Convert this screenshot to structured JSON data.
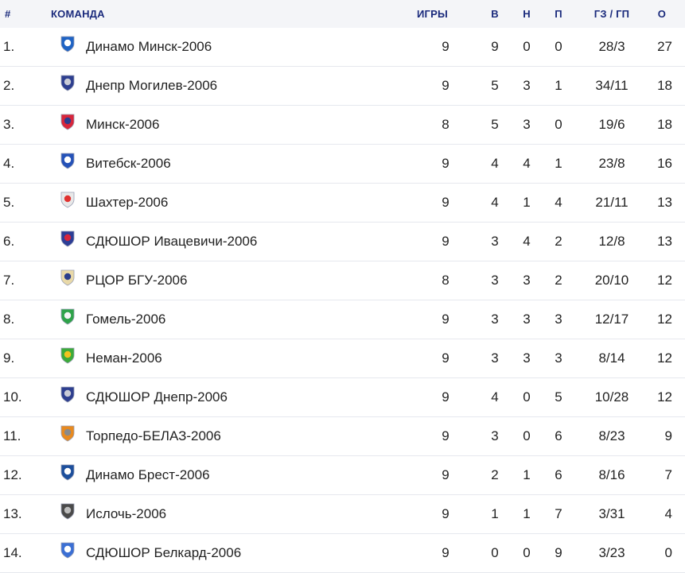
{
  "header": {
    "pos": "#",
    "team": "КОМАНДА",
    "games": "ИГРЫ",
    "wins": "В",
    "draws": "Н",
    "losses": "П",
    "goals": "ГЗ / ГП",
    "points": "О"
  },
  "rows": [
    {
      "pos": "1.",
      "team": "Динамо Минск-2006",
      "games": "9",
      "w": "9",
      "d": "0",
      "l": "0",
      "goals": "28/3",
      "pts": "27",
      "logo": "dinamo-minsk-logo",
      "color": "#1f63c4",
      "color2": "#ffffff"
    },
    {
      "pos": "2.",
      "team": "Днепр Могилев-2006",
      "games": "9",
      "w": "5",
      "d": "3",
      "l": "1",
      "goals": "34/11",
      "pts": "18",
      "logo": "dnepr-mogilev-logo",
      "color": "#2e3f8f",
      "color2": "#c9cbd6"
    },
    {
      "pos": "3.",
      "team": "Минск-2006",
      "games": "8",
      "w": "5",
      "d": "3",
      "l": "0",
      "goals": "19/6",
      "pts": "18",
      "logo": "minsk-logo",
      "color": "#d8263b",
      "color2": "#2b3d8f"
    },
    {
      "pos": "4.",
      "team": "Витебск-2006",
      "games": "9",
      "w": "4",
      "d": "4",
      "l": "1",
      "goals": "23/8",
      "pts": "16",
      "logo": "vitebsk-logo",
      "color": "#2552b8",
      "color2": "#ffffff"
    },
    {
      "pos": "5.",
      "team": "Шахтер-2006",
      "games": "9",
      "w": "4",
      "d": "1",
      "l": "4",
      "goals": "21/11",
      "pts": "13",
      "logo": "shakhter-logo",
      "color": "#e8e8e8",
      "color2": "#e0312f"
    },
    {
      "pos": "6.",
      "team": "СДЮШОР Ивацевичи-2006",
      "games": "9",
      "w": "3",
      "d": "4",
      "l": "2",
      "goals": "12/8",
      "pts": "13",
      "logo": "ivatsevichi-logo",
      "color": "#2d3e96",
      "color2": "#d8263b"
    },
    {
      "pos": "7.",
      "team": "РЦОР БГУ-2006",
      "games": "8",
      "w": "3",
      "d": "3",
      "l": "2",
      "goals": "20/10",
      "pts": "12",
      "logo": "rtsor-bgu-logo",
      "color": "#e9d9a8",
      "color2": "#2a3d8c"
    },
    {
      "pos": "8.",
      "team": "Гомель-2006",
      "games": "9",
      "w": "3",
      "d": "3",
      "l": "3",
      "goals": "12/17",
      "pts": "12",
      "logo": "gomel-logo",
      "color": "#2fa34a",
      "color2": "#f5f5f5"
    },
    {
      "pos": "9.",
      "team": "Неман-2006",
      "games": "9",
      "w": "3",
      "d": "3",
      "l": "3",
      "goals": "8/14",
      "pts": "12",
      "logo": "neman-logo",
      "color": "#3cab3a",
      "color2": "#f2c21f"
    },
    {
      "pos": "10.",
      "team": "СДЮШОР Днепр-2006",
      "games": "9",
      "w": "4",
      "d": "0",
      "l": "5",
      "goals": "10/28",
      "pts": "12",
      "logo": "dnepr-sdyushor-logo",
      "color": "#2e3f8f",
      "color2": "#c9cbd6"
    },
    {
      "pos": "11.",
      "team": "Торпедо-БЕЛАЗ-2006",
      "games": "9",
      "w": "3",
      "d": "0",
      "l": "6",
      "goals": "8/23",
      "pts": "9",
      "logo": "torpedo-belaz-logo",
      "color": "#e88a1f",
      "color2": "#8a8a8a"
    },
    {
      "pos": "12.",
      "team": "Динамо Брест-2006",
      "games": "9",
      "w": "2",
      "d": "1",
      "l": "6",
      "goals": "8/16",
      "pts": "7",
      "logo": "dinamo-brest-logo",
      "color": "#1d4f9c",
      "color2": "#ffffff"
    },
    {
      "pos": "13.",
      "team": "Ислочь-2006",
      "games": "9",
      "w": "1",
      "d": "1",
      "l": "7",
      "goals": "3/31",
      "pts": "4",
      "logo": "isloch-logo",
      "color": "#4a4a4a",
      "color2": "#bdbdbd"
    },
    {
      "pos": "14.",
      "team": "СДЮШОР Белкард-2006",
      "games": "9",
      "w": "0",
      "d": "0",
      "l": "9",
      "goals": "3/23",
      "pts": "0",
      "logo": "belkard-logo",
      "color": "#3b6fd4",
      "color2": "#ffffff"
    }
  ]
}
